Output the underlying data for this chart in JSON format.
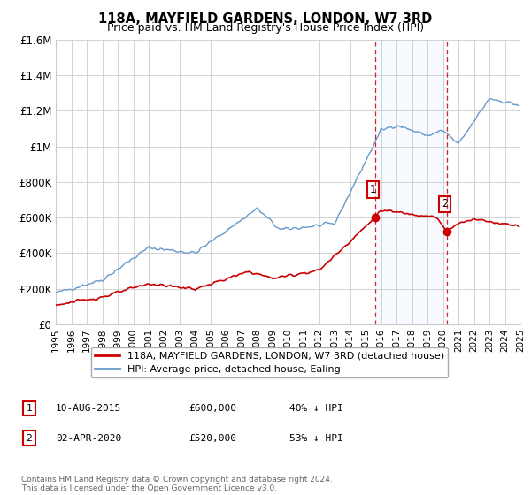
{
  "title": "118A, MAYFIELD GARDENS, LONDON, W7 3RD",
  "subtitle": "Price paid vs. HM Land Registry's House Price Index (HPI)",
  "red_label": "118A, MAYFIELD GARDENS, LONDON, W7 3RD (detached house)",
  "blue_label": "HPI: Average price, detached house, Ealing",
  "event1_date": "10-AUG-2015",
  "event1_price": "£600,000",
  "event1_hpi": "40% ↓ HPI",
  "event1_x": 2015.61,
  "event1_y": 600000,
  "event2_date": "02-APR-2020",
  "event2_price": "£520,000",
  "event2_hpi": "53% ↓ HPI",
  "event2_x": 2020.25,
  "event2_y": 520000,
  "xmin": 1995,
  "xmax": 2025,
  "ymin": 0,
  "ymax": 1600000,
  "yticks": [
    0,
    200000,
    400000,
    600000,
    800000,
    1000000,
    1200000,
    1400000,
    1600000
  ],
  "ytick_labels": [
    "£0",
    "£200K",
    "£400K",
    "£600K",
    "£800K",
    "£1M",
    "£1.2M",
    "£1.4M",
    "£1.6M"
  ],
  "red_color": "#cc0000",
  "blue_color": "#6699cc",
  "shade_color": "#ddeeff",
  "grid_color": "#cccccc",
  "footnote": "Contains HM Land Registry data © Crown copyright and database right 2024.\nThis data is licensed under the Open Government Licence v3.0.",
  "bg_color": "#ffffff"
}
